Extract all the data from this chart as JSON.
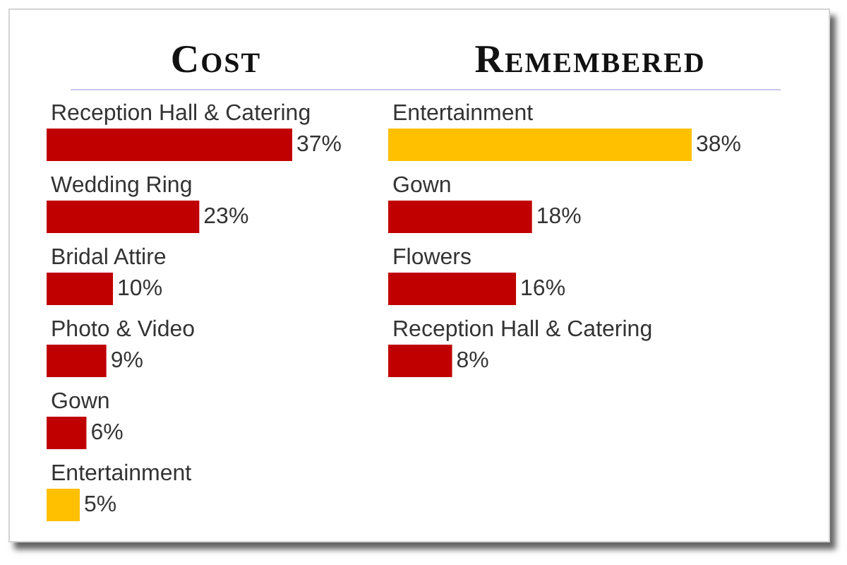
{
  "chart_data": [
    {
      "type": "bar",
      "orientation": "horizontal",
      "title": "Cost",
      "categories": [
        "Reception Hall & Catering",
        "Wedding Ring",
        "Bridal Attire",
        "Photo & Video",
        "Gown",
        "Entertainment"
      ],
      "values": [
        37,
        23,
        10,
        9,
        6,
        5
      ],
      "colors": [
        "#c00000",
        "#c00000",
        "#c00000",
        "#c00000",
        "#c00000",
        "#ffc000"
      ],
      "value_labels": [
        "37%",
        "23%",
        "10%",
        "9%",
        "6%",
        "5%"
      ]
    },
    {
      "type": "bar",
      "orientation": "horizontal",
      "title": "Remembered",
      "categories": [
        "Entertainment",
        "Gown",
        "Flowers",
        "Reception Hall & Catering"
      ],
      "values": [
        38,
        18,
        16,
        8
      ],
      "colors": [
        "#ffc000",
        "#c00000",
        "#c00000",
        "#c00000"
      ],
      "value_labels": [
        "38%",
        "18%",
        "16%",
        "8%"
      ]
    }
  ]
}
